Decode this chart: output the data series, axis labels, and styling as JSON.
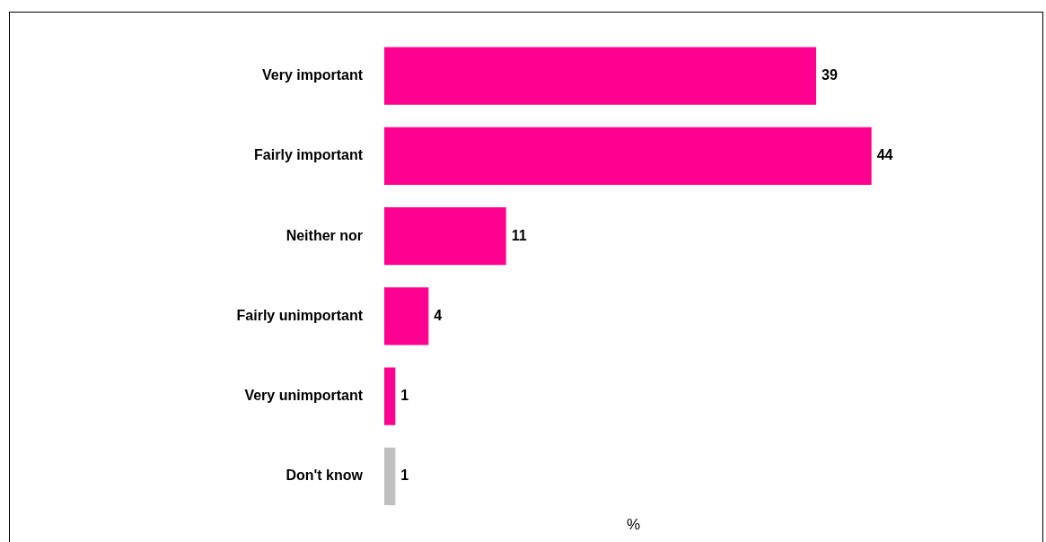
{
  "chart_data": {
    "type": "bar",
    "orientation": "horizontal",
    "xlabel": "%",
    "categories": [
      "Very important",
      "Fairly important",
      "Neither nor",
      "Fairly unimportant",
      "Very unimportant",
      "Don't know"
    ],
    "values": [
      39,
      44,
      11,
      4,
      1,
      1
    ],
    "colors": [
      "#ff0090",
      "#ff0090",
      "#ff0090",
      "#ff0090",
      "#ff0090",
      "#c0c0c0"
    ],
    "data_labels": true,
    "grid": false,
    "legend": false
  }
}
